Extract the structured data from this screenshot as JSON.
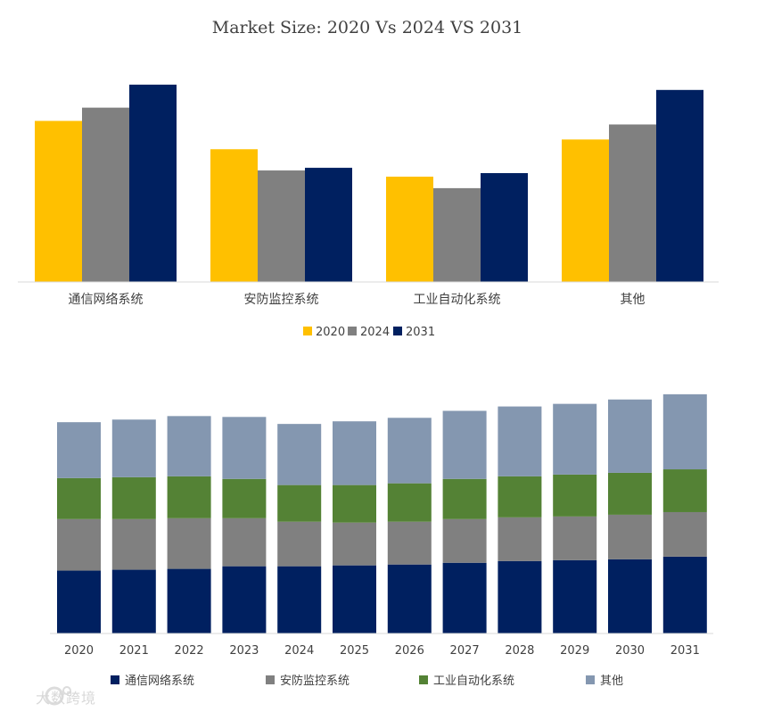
{
  "colors": {
    "y2020": "#FFC000",
    "y2024": "#808080",
    "y2031": "#002060",
    "s_comm": "#002060",
    "s_security": "#808080",
    "s_industrial": "#548235",
    "s_other": "#8497B0"
  },
  "watermark_text": "大数跨境",
  "chart_data": [
    {
      "type": "bar",
      "title": "Market Size: 2020 Vs 2024 VS 2031",
      "categories": [
        "通信网络系统",
        "安防监控系统",
        "工业自动化系统",
        "其他"
      ],
      "series": [
        {
          "name": "2020",
          "values": [
            182,
            150,
            119,
            161
          ]
        },
        {
          "name": "2024",
          "values": [
            197,
            126,
            106,
            178
          ]
        },
        {
          "name": "2031",
          "values": [
            223,
            129,
            123,
            217
          ]
        }
      ],
      "ylim": [
        0,
        240
      ],
      "legend": "bottom"
    },
    {
      "type": "bar",
      "stacked": true,
      "title": "",
      "categories": [
        "2020",
        "2021",
        "2022",
        "2023",
        "2024",
        "2025",
        "2026",
        "2027",
        "2028",
        "2029",
        "2030",
        "2031"
      ],
      "series": [
        {
          "name": "通信网络系统",
          "values": [
            72,
            73,
            74,
            77,
            77,
            78,
            79,
            81,
            83,
            84,
            85,
            88
          ]
        },
        {
          "name": "安防监控系统",
          "values": [
            59,
            58,
            58,
            55,
            51,
            49,
            49,
            50,
            50,
            50,
            51,
            51
          ]
        },
        {
          "name": "工业自动化系统",
          "values": [
            47,
            48,
            48,
            45,
            42,
            43,
            44,
            46,
            47,
            48,
            48,
            49
          ]
        },
        {
          "name": "其他",
          "values": [
            64,
            66,
            69,
            71,
            70,
            73,
            75,
            78,
            80,
            81,
            84,
            86
          ]
        }
      ],
      "ylim": [
        0,
        280
      ],
      "legend": "bottom"
    }
  ]
}
